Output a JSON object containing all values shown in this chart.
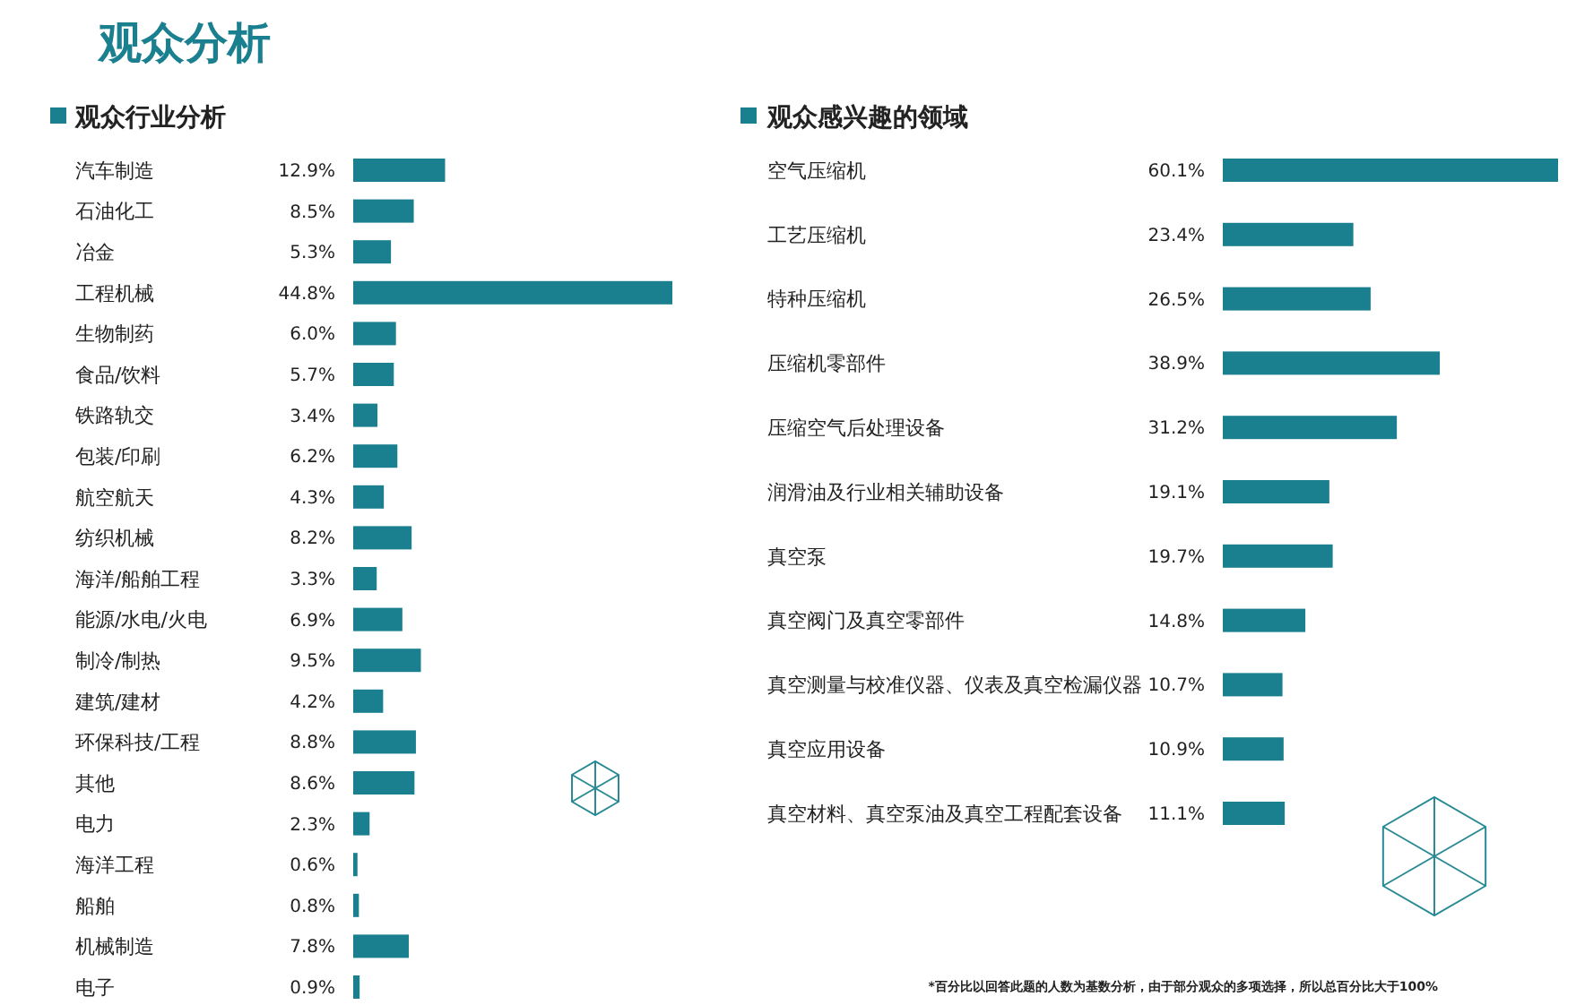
{
  "chart_data": [
    {
      "type": "bar",
      "orientation": "horizontal",
      "title": "观众行业分析",
      "color": "#1a7f8e",
      "annotations": [
        "观众分析"
      ],
      "categories": [
        "汽车制造",
        "石油化工",
        "冶金",
        "工程机械",
        "生物制药",
        "食品/饮料",
        "铁路轨交",
        "包装/印刷",
        "航空航天",
        "纺织机械",
        "海洋/船舶工程",
        "能源/水电/火电",
        "制冷/制热",
        "建筑/建材",
        "环保科技/工程",
        "其他",
        "电力",
        "海洋工程",
        "船舶",
        "机械制造",
        "电子"
      ],
      "values": [
        12.9,
        8.5,
        5.3,
        44.8,
        6.0,
        5.7,
        3.4,
        6.2,
        4.3,
        8.2,
        3.3,
        6.9,
        9.5,
        4.2,
        8.8,
        8.6,
        2.3,
        0.6,
        0.8,
        7.8,
        0.9
      ],
      "value_labels": [
        "12.9%",
        "8.5%",
        "5.3%",
        "44.8%",
        "6.0%",
        "5.7%",
        "3.4%",
        "6.2%",
        "4.3%",
        "8.2%",
        "3.3%",
        "6.9%",
        "9.5%",
        "4.2%",
        "8.8%",
        "8.6%",
        "2.3%",
        "0.6%",
        "0.8%",
        "7.8%",
        "0.9%"
      ]
    },
    {
      "type": "bar",
      "orientation": "horizontal",
      "title": "观众感兴趣的领域",
      "color": "#1a7f8e",
      "annotations": [
        "*百分比以回答此题的人数为基数分析，由于部分观众的多项选择，所以总百分比大于100%"
      ],
      "categories": [
        "空气压缩机",
        "工艺压缩机",
        "特种压缩机",
        "压缩机零部件",
        "压缩空气后处理设备",
        "润滑油及行业相关辅助设备",
        "真空泵",
        "真空阀门及真空零部件",
        "真空测量与校准仪器、仪表及真空检漏仪器",
        "真空应用设备",
        "真空材料、真空泵油及真空工程配套设备"
      ],
      "values": [
        60.1,
        23.4,
        26.5,
        38.9,
        31.2,
        19.1,
        19.7,
        14.8,
        10.7,
        10.9,
        11.1
      ],
      "value_labels": [
        "60.1%",
        "23.4%",
        "26.5%",
        "38.9%",
        "31.2%",
        "19.1%",
        "19.7%",
        "14.8%",
        "10.7%",
        "10.9%",
        "11.1%"
      ]
    }
  ]
}
